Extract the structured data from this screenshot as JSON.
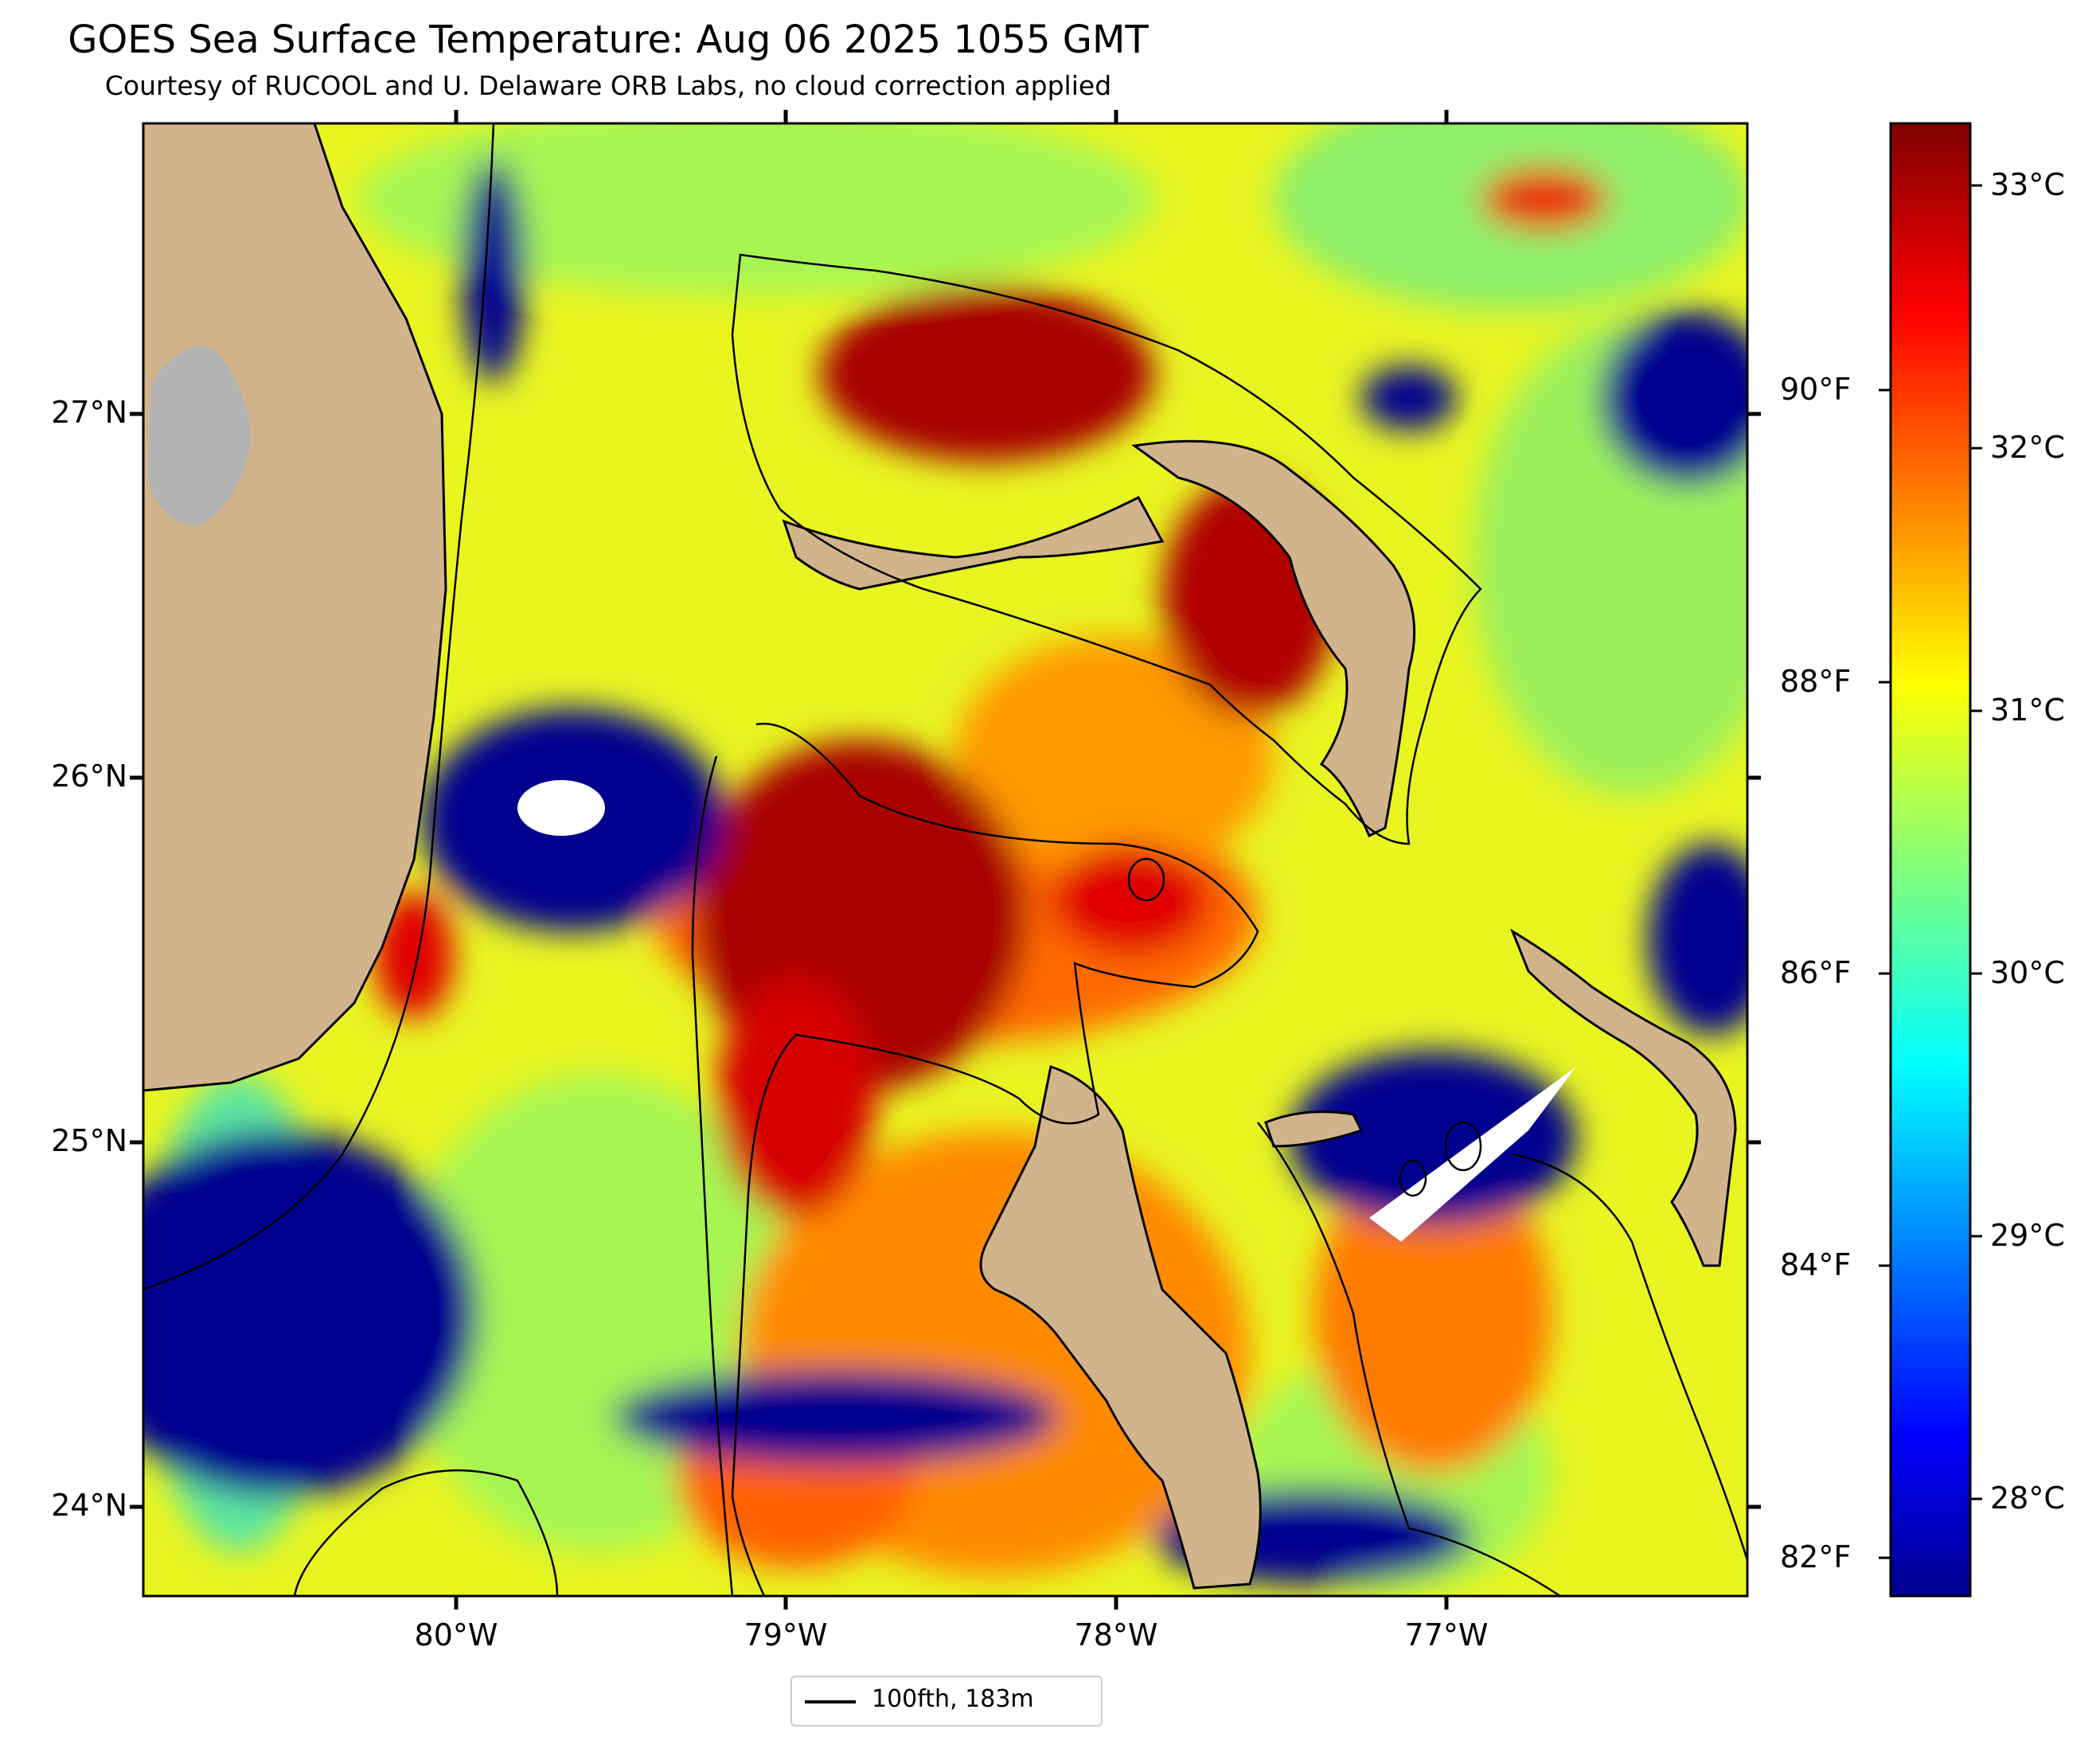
{
  "title": "GOES Sea Surface Temperature: Aug 06 2025 1055 GMT",
  "subtitle": "Courtesy of RUCOOL and U. Delaware ORB Labs, no cloud correction applied",
  "map": {
    "lat_labels": [
      "27°N",
      "26°N",
      "25°N",
      "24°N"
    ],
    "lon_labels": [
      "80°W",
      "79°W",
      "78°W",
      "77°W"
    ],
    "extent": {
      "lon_min": -80.95,
      "lon_max": -76.1,
      "lat_min": 23.75,
      "lat_max": 27.8
    },
    "colors": {
      "land": "#d2b48c",
      "lake": "#b3b3b3",
      "cloud": "#ffffff",
      "contour": "#000000"
    }
  },
  "legend": {
    "label": "100fth, 183m"
  },
  "colorbar": {
    "cmap": "jet",
    "celsius_labels": [
      "33°C",
      "32°C",
      "31°C",
      "30°C",
      "29°C",
      "28°C"
    ],
    "fahrenheit_labels": [
      "90°F",
      "88°F",
      "86°F",
      "84°F",
      "82°F"
    ],
    "range_c": [
      27.7,
      33.3
    ]
  }
}
